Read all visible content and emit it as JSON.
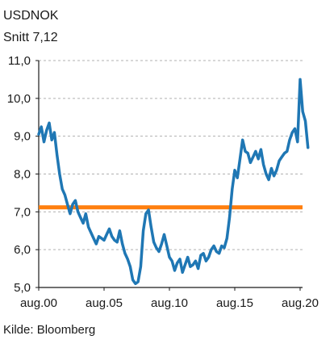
{
  "chart_data": {
    "type": "line",
    "title": "USDNOK",
    "subtitle": "Snitt 7,12",
    "source": "Kilde: Bloomberg",
    "xlabel": "",
    "ylabel": "",
    "ylim": [
      5.0,
      11.0
    ],
    "xlim": [
      2000.0,
      2020.0
    ],
    "y_ticks": [
      5.0,
      6.0,
      7.0,
      8.0,
      9.0,
      10.0,
      11.0
    ],
    "y_tick_labels": [
      "5,0",
      "6,0",
      "7,0",
      "8,0",
      "9,0",
      "10,0",
      "11,0"
    ],
    "x_ticks": [
      2000,
      2005,
      2010,
      2015,
      2020
    ],
    "x_tick_labels": [
      "aug.00",
      "aug.05",
      "aug.10",
      "aug.15",
      "aug.20"
    ],
    "grid": "horizontal dashed",
    "colors": {
      "series": "#1f77b4",
      "average": "#ff7f0e",
      "grid": "#b0b0b0",
      "axis": "#1a1a1a"
    },
    "average_line": {
      "value": 7.12
    },
    "series": [
      {
        "x": [
          2000.0,
          2000.2,
          2000.4,
          2000.6,
          2000.8,
          2001.0,
          2001.2,
          2001.4,
          2001.6,
          2001.8,
          2002.0,
          2002.2,
          2002.4,
          2002.6,
          2002.8,
          2003.0,
          2003.2,
          2003.4,
          2003.6,
          2003.8,
          2004.0,
          2004.2,
          2004.4,
          2004.6,
          2004.8,
          2005.0,
          2005.2,
          2005.4,
          2005.6,
          2005.8,
          2006.0,
          2006.2,
          2006.4,
          2006.6,
          2006.8,
          2007.0,
          2007.2,
          2007.4,
          2007.6,
          2007.8,
          2008.0,
          2008.2,
          2008.4,
          2008.6,
          2008.8,
          2009.0,
          2009.2,
          2009.4,
          2009.6,
          2009.8,
          2010.0,
          2010.2,
          2010.4,
          2010.6,
          2010.8,
          2011.0,
          2011.2,
          2011.4,
          2011.6,
          2011.8,
          2012.0,
          2012.2,
          2012.4,
          2012.6,
          2012.8,
          2013.0,
          2013.2,
          2013.4,
          2013.6,
          2013.8,
          2014.0,
          2014.2,
          2014.4,
          2014.6,
          2014.8,
          2015.0,
          2015.2,
          2015.4,
          2015.6,
          2015.8,
          2016.0,
          2016.2,
          2016.4,
          2016.6,
          2016.8,
          2017.0,
          2017.2,
          2017.4,
          2017.6,
          2017.8,
          2018.0,
          2018.2,
          2018.4,
          2018.6,
          2018.8,
          2019.0,
          2019.2,
          2019.4,
          2019.6,
          2019.8,
          2020.0,
          2020.2,
          2020.4,
          2020.6
        ],
        "values": [
          9.05,
          9.25,
          8.85,
          9.15,
          9.35,
          8.9,
          9.1,
          8.5,
          8.0,
          7.6,
          7.45,
          7.2,
          6.95,
          7.2,
          7.3,
          7.0,
          6.85,
          6.7,
          6.95,
          6.6,
          6.45,
          6.3,
          6.15,
          6.35,
          6.3,
          6.25,
          6.4,
          6.55,
          6.35,
          6.25,
          6.2,
          6.5,
          6.15,
          5.9,
          5.75,
          5.55,
          5.2,
          5.1,
          5.15,
          5.55,
          6.5,
          6.95,
          7.05,
          6.6,
          6.2,
          6.05,
          5.95,
          6.15,
          6.4,
          6.1,
          5.8,
          5.7,
          5.45,
          5.65,
          5.75,
          5.4,
          5.6,
          5.8,
          5.55,
          5.6,
          5.7,
          5.5,
          5.85,
          5.9,
          5.7,
          5.8,
          6.0,
          6.1,
          5.95,
          5.9,
          6.1,
          6.05,
          6.3,
          6.85,
          7.6,
          8.1,
          7.9,
          8.4,
          8.9,
          8.6,
          8.55,
          8.3,
          8.45,
          8.6,
          8.4,
          8.65,
          8.25,
          8.0,
          7.85,
          8.15,
          7.95,
          8.1,
          8.35,
          8.45,
          8.55,
          8.6,
          8.9,
          9.1,
          9.2,
          8.85,
          10.5,
          9.65,
          9.4,
          8.7
        ]
      }
    ]
  }
}
